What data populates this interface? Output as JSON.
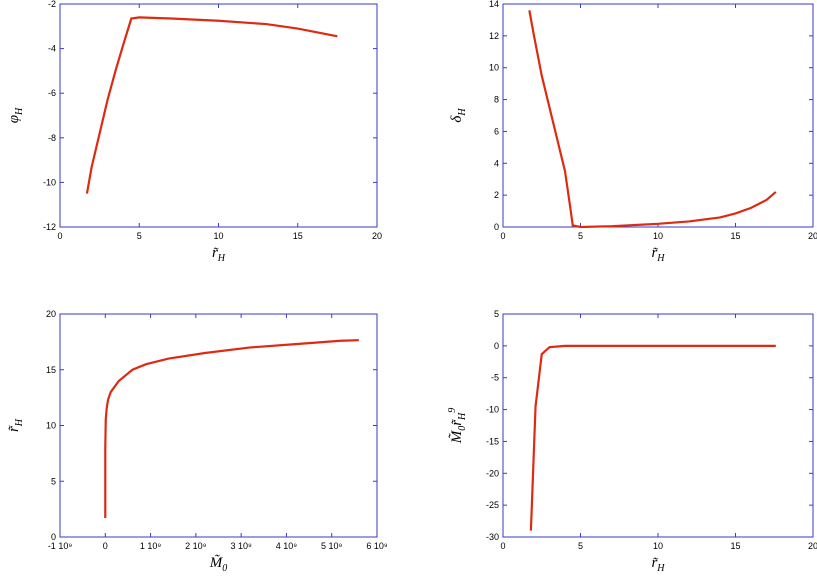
{
  "chart_data": [
    {
      "type": "line",
      "x": [
        1.7,
        2,
        2.5,
        3,
        3.5,
        4,
        4.5,
        5,
        7,
        10,
        13,
        15,
        17.5
      ],
      "series": [
        {
          "color": "#dd2a10",
          "values": [
            -10.5,
            -9.3,
            -7.8,
            -6.3,
            -5,
            -3.8,
            -2.65,
            -2.6,
            -2.65,
            -2.75,
            -2.9,
            -3.1,
            -3.45
          ]
        }
      ],
      "xlim": [
        0,
        20
      ],
      "xticks": [
        0,
        5,
        10,
        15,
        20
      ],
      "ylim": [
        -12,
        -2
      ],
      "yticks": [
        -12,
        -10,
        -8,
        -6,
        -4,
        -2
      ],
      "xlabel": [
        {
          "text": "r̃"
        },
        {
          "text": "H",
          "shift": "sub"
        }
      ],
      "ylabel": [
        {
          "text": "φ"
        },
        {
          "text": "H",
          "shift": "sub"
        }
      ]
    },
    {
      "type": "line",
      "x": [
        1.7,
        2,
        2.5,
        3,
        3.5,
        4,
        4.3,
        4.5,
        5,
        7,
        10,
        12,
        14,
        15,
        16,
        17,
        17.6
      ],
      "series": [
        {
          "color": "#dd2a10",
          "values": [
            13.6,
            12,
            9.5,
            7.5,
            5.5,
            3.5,
            1.5,
            0.1,
            0,
            0.05,
            0.2,
            0.35,
            0.6,
            0.85,
            1.2,
            1.7,
            2.2
          ]
        }
      ],
      "xlim": [
        0,
        20
      ],
      "xticks": [
        0,
        5,
        10,
        15,
        20
      ],
      "ylim": [
        0,
        14
      ],
      "yticks": [
        0,
        2,
        4,
        6,
        8,
        10,
        12,
        14
      ],
      "xlabel": [
        {
          "text": "r̃"
        },
        {
          "text": "H",
          "shift": "sub"
        }
      ],
      "ylabel": [
        {
          "text": "δ"
        },
        {
          "text": "H",
          "shift": "sub"
        }
      ]
    },
    {
      "type": "line",
      "x": [
        0,
        0,
        10000000,
        30000000,
        60000000,
        120000000,
        300000000,
        600000000,
        900000000,
        1400000000,
        2200000000,
        3200000000,
        4200000000,
        5200000000,
        5600000000
      ],
      "series": [
        {
          "color": "#dd2a10",
          "values": [
            1.7,
            8,
            10.5,
            11.5,
            12.3,
            13,
            14,
            15,
            15.5,
            16,
            16.5,
            17,
            17.3,
            17.6,
            17.65
          ]
        }
      ],
      "xlim": [
        -1000000000,
        6000000000
      ],
      "xticks": [
        {
          "value": -1000000000,
          "label": "-1 10⁹"
        },
        0,
        {
          "value": 1000000000,
          "label": "1 10⁹"
        },
        {
          "value": 2000000000,
          "label": "2 10⁹"
        },
        {
          "value": 3000000000,
          "label": "3 10⁹"
        },
        {
          "value": 4000000000,
          "label": "4 10⁹"
        },
        {
          "value": 5000000000,
          "label": "5 10⁹"
        },
        {
          "value": 6000000000,
          "label": "6 10⁹"
        }
      ],
      "ylim": [
        0,
        20
      ],
      "yticks": [
        0,
        5,
        10,
        15,
        20
      ],
      "xlabel": [
        {
          "text": "M̃"
        },
        {
          "text": "0",
          "shift": "sub"
        }
      ],
      "ylabel": [
        {
          "text": "r̃"
        },
        {
          "text": "H",
          "shift": "sub"
        }
      ]
    },
    {
      "type": "line",
      "x": [
        1.8,
        2.1,
        2.5,
        3,
        4,
        10,
        15,
        17.6
      ],
      "series": [
        {
          "color": "#dd2a10",
          "values": [
            -29,
            -9.5,
            -1.3,
            -0.2,
            0,
            0,
            0,
            0
          ]
        }
      ],
      "xlim": [
        0,
        20
      ],
      "xticks": [
        0,
        5,
        10,
        15,
        20
      ],
      "ylim": [
        -30,
        5
      ],
      "yticks": [
        -30,
        -25,
        -20,
        -15,
        -10,
        -5,
        0,
        5
      ],
      "xlabel": [
        {
          "text": "r̃"
        },
        {
          "text": "H",
          "shift": "sub"
        }
      ],
      "ylabel": [
        {
          "text": "M̃"
        },
        {
          "text": "0",
          "shift": "sub"
        },
        {
          "text": "r̃"
        },
        {
          "text": "H",
          "shift": "sub"
        },
        {
          "text": "9",
          "shift": "sup"
        }
      ]
    }
  ]
}
